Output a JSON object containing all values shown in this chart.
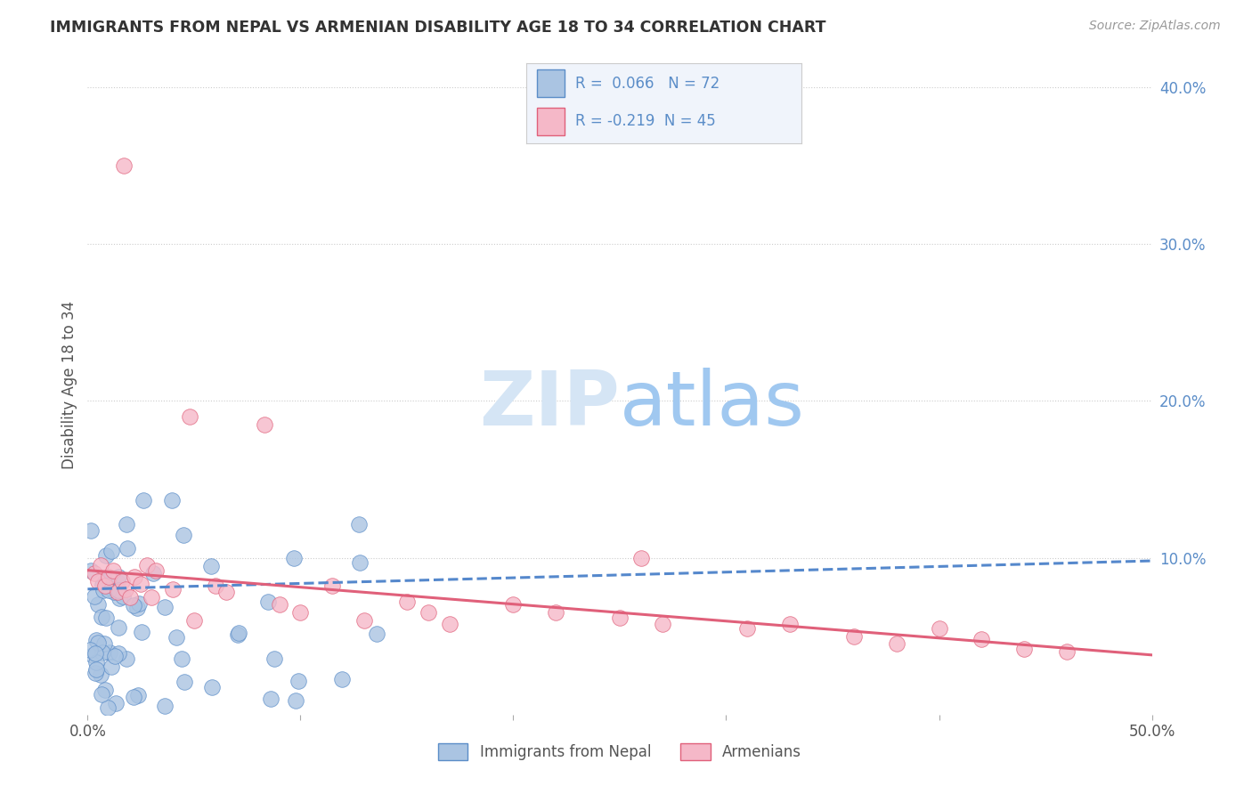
{
  "title": "IMMIGRANTS FROM NEPAL VS ARMENIAN DISABILITY AGE 18 TO 34 CORRELATION CHART",
  "source": "Source: ZipAtlas.com",
  "ylabel": "Disability Age 18 to 34",
  "xmin": 0.0,
  "xmax": 0.5,
  "ymin": 0.0,
  "ymax": 0.42,
  "r_nepal": 0.066,
  "n_nepal": 72,
  "r_armenian": -0.219,
  "n_armenian": 45,
  "nepal_fill": "#aac4e2",
  "nepal_edge": "#5b8dc8",
  "armenian_fill": "#f5b8c8",
  "armenian_edge": "#e0607a",
  "nepal_trend_color": "#5588cc",
  "armenian_trend_color": "#e0607a",
  "nepal_trend_x0": 0.0,
  "nepal_trend_y0": 0.08,
  "nepal_trend_x1": 0.5,
  "nepal_trend_y1": 0.098,
  "armenian_trend_x0": 0.0,
  "armenian_trend_y0": 0.092,
  "armenian_trend_x1": 0.5,
  "armenian_trend_y1": 0.038,
  "background_color": "#ffffff",
  "grid_color": "#cccccc",
  "title_color": "#333333",
  "axis_label_color": "#5b8dc8",
  "tick_color": "#555555",
  "watermark_color": "#d5e5f5",
  "watermark_text": "ZIPatlas",
  "legend_bg": "#f0f4fb",
  "legend_border": "#cccccc"
}
